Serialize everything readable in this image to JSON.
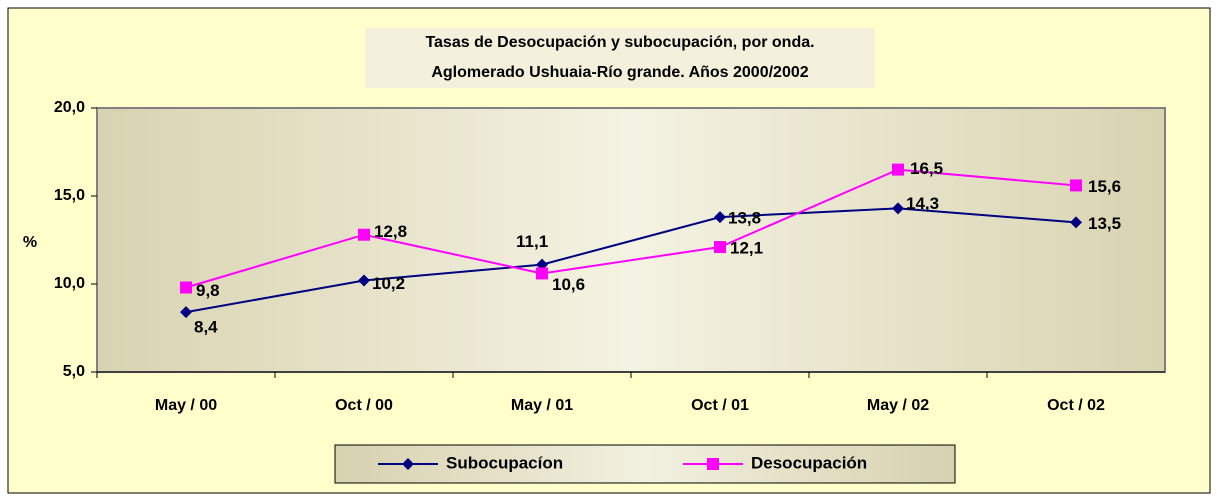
{
  "chart_data": {
    "type": "line",
    "title": "Tasas de Desocupación y subocupación, por onda.",
    "subtitle": "Aglomerado Ushuaia-Río grande. Años 2000/2002",
    "y_label": "%",
    "categories": [
      "May / 00",
      "Oct / 00",
      "May / 01",
      "Oct / 01",
      "May / 02",
      "Oct / 02"
    ],
    "series": [
      {
        "name": "Subocupacíon",
        "color": "#000080",
        "marker": "diamond",
        "values": [
          8.4,
          10.2,
          11.1,
          13.8,
          14.3,
          13.5
        ],
        "value_labels": [
          "8,4",
          "10,2",
          "11,1",
          "13,8",
          "14,3",
          "13,5"
        ]
      },
      {
        "name": "Desocupación",
        "color": "#ff00ff",
        "marker": "square",
        "values": [
          9.8,
          12.8,
          10.6,
          12.1,
          16.5,
          15.6
        ],
        "value_labels": [
          "9,8",
          "12,8",
          "10,6",
          "12,1",
          "16,5",
          "15,6"
        ]
      }
    ],
    "ylim": [
      5,
      20
    ],
    "yticks": [
      {
        "value": 5,
        "label": "5,0"
      },
      {
        "value": 10,
        "label": "10,0"
      },
      {
        "value": 15,
        "label": "15,0"
      },
      {
        "value": 20,
        "label": "20,0"
      }
    ],
    "grid": false,
    "legend": "bottom"
  }
}
